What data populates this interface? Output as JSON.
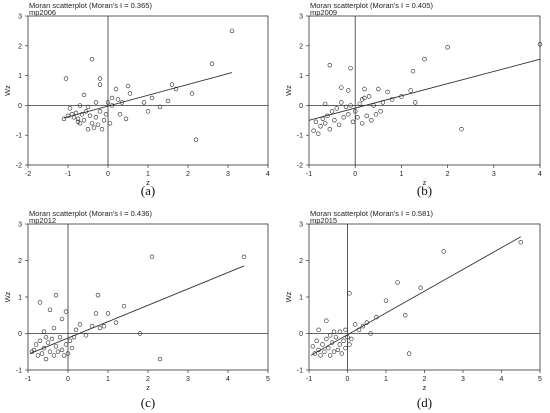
{
  "chart_data": [
    {
      "type": "scatter",
      "title": "Moran scatterplot (Moran's I = 0.365)",
      "subtitle": "mp2006",
      "xlabel": "z",
      "ylabel": "Wz",
      "caption": "(a)",
      "xlim": [
        -2,
        4
      ],
      "ylim": [
        -2,
        3
      ],
      "xticks": [
        -2,
        -1,
        0,
        1,
        2,
        3,
        4
      ],
      "yticks": [
        -2,
        -1,
        0,
        1,
        2,
        3
      ],
      "fit_line": [
        [
          -1.1,
          -0.42
        ],
        [
          3.1,
          1.1
        ]
      ],
      "points": [
        [
          -1.1,
          -0.45
        ],
        [
          -1.0,
          -0.35
        ],
        [
          -0.95,
          -0.1
        ],
        [
          -0.9,
          -0.3
        ],
        [
          -0.85,
          -0.4
        ],
        [
          -0.8,
          -0.25
        ],
        [
          -0.75,
          -0.45
        ],
        [
          -0.7,
          -0.6
        ],
        [
          -0.7,
          0.0
        ],
        [
          -0.65,
          -0.3
        ],
        [
          -0.6,
          -0.5
        ],
        [
          -0.55,
          -0.2
        ],
        [
          -0.5,
          -0.8
        ],
        [
          -0.5,
          -0.05
        ],
        [
          -0.45,
          -0.35
        ],
        [
          -0.4,
          -0.6
        ],
        [
          -0.35,
          -0.75
        ],
        [
          -0.3,
          -0.4
        ],
        [
          -0.3,
          0.1
        ],
        [
          -0.25,
          -0.65
        ],
        [
          -0.2,
          -0.2
        ],
        [
          -0.15,
          -0.8
        ],
        [
          -0.1,
          -0.5
        ],
        [
          -0.05,
          -0.3
        ],
        [
          0.0,
          0.1
        ],
        [
          0.05,
          -0.6
        ],
        [
          0.1,
          0.0
        ],
        [
          0.2,
          0.55
        ],
        [
          0.25,
          0.2
        ],
        [
          0.3,
          -0.3
        ],
        [
          0.35,
          0.1
        ],
        [
          0.45,
          -0.45
        ],
        [
          0.5,
          0.65
        ],
        [
          0.55,
          0.4
        ],
        [
          -1.05,
          0.9
        ],
        [
          -0.6,
          0.35
        ],
        [
          -0.4,
          1.55
        ],
        [
          -0.2,
          0.9
        ],
        [
          0.1,
          0.25
        ],
        [
          -0.75,
          -0.55
        ],
        [
          0.9,
          0.1
        ],
        [
          1.0,
          -0.2
        ],
        [
          1.1,
          0.25
        ],
        [
          1.3,
          -0.05
        ],
        [
          1.5,
          0.15
        ],
        [
          1.6,
          0.7
        ],
        [
          1.7,
          0.55
        ],
        [
          2.1,
          0.4
        ],
        [
          2.2,
          -1.15
        ],
        [
          2.6,
          1.4
        ],
        [
          3.1,
          2.5
        ],
        [
          -0.2,
          0.7
        ]
      ]
    },
    {
      "type": "scatter",
      "title": "Moran scatterplot (Moran's I = 0.405)",
      "subtitle": "mp2009",
      "xlabel": "z",
      "ylabel": "Wz",
      "caption": "(b)",
      "xlim": [
        -1,
        4
      ],
      "ylim": [
        -2,
        3
      ],
      "xticks": [
        -1,
        0,
        1,
        2,
        3,
        4
      ],
      "yticks": [
        -2,
        -1,
        0,
        1,
        2,
        3
      ],
      "fit_line": [
        [
          -1.0,
          -0.5
        ],
        [
          4.0,
          1.55
        ]
      ],
      "points": [
        [
          -0.9,
          -0.85
        ],
        [
          -0.85,
          -0.55
        ],
        [
          -0.8,
          -0.95
        ],
        [
          -0.75,
          -0.7
        ],
        [
          -0.7,
          -0.45
        ],
        [
          -0.65,
          -0.6
        ],
        [
          -0.6,
          -0.35
        ],
        [
          -0.55,
          -0.8
        ],
        [
          -0.5,
          -0.2
        ],
        [
          -0.45,
          -0.5
        ],
        [
          -0.4,
          -0.1
        ],
        [
          -0.35,
          -0.65
        ],
        [
          -0.3,
          0.1
        ],
        [
          -0.25,
          -0.4
        ],
        [
          -0.2,
          -0.05
        ],
        [
          -0.15,
          -0.3
        ],
        [
          -0.1,
          0.0
        ],
        [
          -0.05,
          -0.55
        ],
        [
          0.0,
          -0.2
        ],
        [
          0.05,
          -0.4
        ],
        [
          0.1,
          0.05
        ],
        [
          0.15,
          -0.6
        ],
        [
          0.2,
          0.25
        ],
        [
          0.25,
          -0.35
        ],
        [
          0.3,
          0.3
        ],
        [
          0.35,
          -0.5
        ],
        [
          0.4,
          0.0
        ],
        [
          0.45,
          -0.3
        ],
        [
          0.5,
          0.55
        ],
        [
          0.55,
          -0.2
        ],
        [
          0.6,
          0.1
        ],
        [
          0.7,
          0.45
        ],
        [
          -0.55,
          1.35
        ],
        [
          -0.3,
          0.6
        ],
        [
          -0.1,
          1.25
        ],
        [
          0.2,
          0.55
        ],
        [
          0.8,
          0.2
        ],
        [
          1.0,
          0.3
        ],
        [
          1.2,
          0.5
        ],
        [
          1.25,
          1.15
        ],
        [
          1.3,
          0.1
        ],
        [
          1.5,
          1.55
        ],
        [
          2.0,
          1.95
        ],
        [
          2.3,
          -0.8
        ],
        [
          4.0,
          2.05
        ],
        [
          -0.65,
          0.05
        ],
        [
          -0.15,
          0.5
        ],
        [
          0.15,
          0.2
        ]
      ]
    },
    {
      "type": "scatter",
      "title": "Moran scatterplot (Moran's I = 0.436)",
      "subtitle": "mp2012",
      "xlabel": "z",
      "ylabel": "Wz",
      "caption": "(c)",
      "xlim": [
        -1,
        5
      ],
      "ylim": [
        -1,
        3
      ],
      "xticks": [
        -1,
        0,
        1,
        2,
        3,
        4,
        5
      ],
      "yticks": [
        -1,
        0,
        1,
        2,
        3
      ],
      "fit_line": [
        [
          -0.95,
          -0.55
        ],
        [
          4.4,
          1.85
        ]
      ],
      "points": [
        [
          -0.9,
          -0.5
        ],
        [
          -0.85,
          -0.45
        ],
        [
          -0.8,
          -0.3
        ],
        [
          -0.75,
          -0.6
        ],
        [
          -0.7,
          -0.2
        ],
        [
          -0.65,
          -0.55
        ],
        [
          -0.6,
          -0.4
        ],
        [
          -0.55,
          -0.7
        ],
        [
          -0.5,
          -0.25
        ],
        [
          -0.45,
          -0.5
        ],
        [
          -0.4,
          -0.15
        ],
        [
          -0.35,
          -0.6
        ],
        [
          -0.3,
          -0.35
        ],
        [
          -0.25,
          -0.5
        ],
        [
          -0.2,
          -0.1
        ],
        [
          -0.15,
          -0.45
        ],
        [
          -0.1,
          -0.6
        ],
        [
          -0.05,
          -0.3
        ],
        [
          0.0,
          -0.55
        ],
        [
          0.05,
          -0.2
        ],
        [
          0.1,
          -0.4
        ],
        [
          0.15,
          -0.1
        ],
        [
          -0.7,
          0.85
        ],
        [
          -0.6,
          0.05
        ],
        [
          -0.45,
          0.65
        ],
        [
          -0.3,
          1.05
        ],
        [
          -0.15,
          0.4
        ],
        [
          -0.05,
          0.6
        ],
        [
          0.2,
          0.1
        ],
        [
          0.3,
          0.25
        ],
        [
          0.45,
          -0.05
        ],
        [
          0.6,
          0.2
        ],
        [
          0.7,
          0.55
        ],
        [
          0.75,
          1.05
        ],
        [
          0.8,
          0.15
        ],
        [
          0.9,
          0.2
        ],
        [
          1.0,
          0.55
        ],
        [
          1.2,
          0.3
        ],
        [
          1.4,
          0.75
        ],
        [
          1.8,
          0.0
        ],
        [
          2.1,
          2.1
        ],
        [
          2.3,
          -0.7
        ],
        [
          4.4,
          2.1
        ],
        [
          -0.35,
          0.15
        ],
        [
          -0.55,
          -0.1
        ]
      ]
    },
    {
      "type": "scatter",
      "title": "Moran scatterplot (Moran's I = 0.581)",
      "subtitle": "mp2015",
      "xlabel": "z",
      "ylabel": "Wz",
      "caption": "(d)",
      "xlim": [
        -1,
        5
      ],
      "ylim": [
        -1,
        3
      ],
      "xticks": [
        -1,
        0,
        1,
        2,
        3,
        4,
        5
      ],
      "yticks": [
        -1,
        0,
        1,
        2,
        3
      ],
      "fit_line": [
        [
          -0.95,
          -0.6
        ],
        [
          4.5,
          2.65
        ]
      ],
      "points": [
        [
          -0.9,
          -0.35
        ],
        [
          -0.85,
          -0.55
        ],
        [
          -0.8,
          -0.2
        ],
        [
          -0.75,
          -0.45
        ],
        [
          -0.7,
          -0.6
        ],
        [
          -0.65,
          -0.3
        ],
        [
          -0.6,
          -0.5
        ],
        [
          -0.55,
          -0.15
        ],
        [
          -0.5,
          -0.4
        ],
        [
          -0.45,
          -0.6
        ],
        [
          -0.4,
          -0.25
        ],
        [
          -0.35,
          -0.5
        ],
        [
          -0.3,
          -0.1
        ],
        [
          -0.25,
          -0.45
        ],
        [
          -0.2,
          -0.3
        ],
        [
          -0.15,
          -0.55
        ],
        [
          -0.1,
          -0.2
        ],
        [
          -0.05,
          -0.4
        ],
        [
          0.0,
          -0.1
        ],
        [
          0.05,
          -0.3
        ],
        [
          -0.75,
          0.1
        ],
        [
          -0.55,
          0.35
        ],
        [
          -0.35,
          0.05
        ],
        [
          -0.2,
          0.05
        ],
        [
          -0.05,
          0.1
        ],
        [
          0.05,
          1.1
        ],
        [
          0.1,
          -0.15
        ],
        [
          0.2,
          0.25
        ],
        [
          0.3,
          0.1
        ],
        [
          0.4,
          0.2
        ],
        [
          0.5,
          0.3
        ],
        [
          0.6,
          0.0
        ],
        [
          0.75,
          0.45
        ],
        [
          1.0,
          0.9
        ],
        [
          1.3,
          1.4
        ],
        [
          1.5,
          0.5
        ],
        [
          1.6,
          -0.55
        ],
        [
          1.9,
          1.25
        ],
        [
          2.5,
          2.25
        ],
        [
          4.5,
          2.5
        ],
        [
          -0.45,
          -0.05
        ]
      ]
    }
  ]
}
